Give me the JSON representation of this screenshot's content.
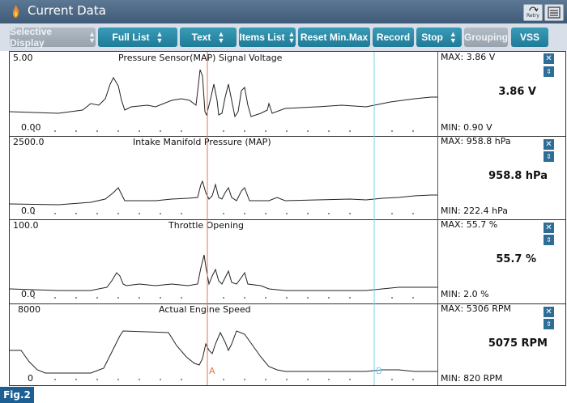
{
  "app": {
    "title": "Current Data",
    "retry_label": "Retry",
    "flame_icon": "flame-icon",
    "menu_icon": "menu-icon"
  },
  "toolbar": {
    "selective_display": "Selective Display",
    "full_list": "Full List",
    "text": "Text",
    "items_list": "Items List",
    "reset_minmax": "Reset Min.Max",
    "record": "Record",
    "stop": "Stop",
    "grouping": "Grouping",
    "vss": "VSS"
  },
  "cursors": {
    "a_label": "A",
    "b_label": "B"
  },
  "panels": [
    {
      "title": "Pressure Sensor(MAP) Signal Voltage",
      "y_max_label": "5.00",
      "y_min_label": "0.00",
      "max_text": "MAX:  3.86 V",
      "min_text": "MIN:  0.90 V",
      "current": "3.86 V"
    },
    {
      "title": "Intake Manifold Pressure (MAP)",
      "y_max_label": "2500.0",
      "y_min_label": "0.0",
      "max_text": "MAX: 958.8 hPa",
      "min_text": "MIN: 222.4 hPa",
      "current": "958.8 hPa"
    },
    {
      "title": "Throttle Opening",
      "y_max_label": "100.0",
      "y_min_label": "0.0",
      "max_text": "MAX:  55.7 %",
      "min_text": "MIN:  2.0 %",
      "current": "55.7 %"
    },
    {
      "title": "Actual Engine Speed",
      "y_max_label": "8000",
      "y_min_label": "0",
      "max_text": "MAX:  5306 RPM",
      "min_text": "MIN:  820 RPM",
      "current": "5075 RPM"
    }
  ],
  "figure_label": "Fig.2",
  "colors": {
    "titlebar": "#4b6784",
    "teal_button": "#2a8aa8",
    "cursor_a": "#e07a4a",
    "cursor_b": "#7fd0e8",
    "panel_button": "#2e6d96"
  }
}
